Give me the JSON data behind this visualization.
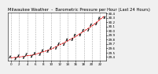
{
  "title": "Milwaukee Weather  -  Barometric Pressure per Hour (Last 24 Hours)",
  "bg_color": "#f0f0f0",
  "plot_bg_color": "#ffffff",
  "grid_color": "#aaaaaa",
  "hours": [
    0,
    1,
    2,
    3,
    4,
    5,
    6,
    7,
    8,
    9,
    10,
    11,
    12,
    13,
    14,
    15,
    16,
    17,
    18,
    19,
    20,
    21,
    22,
    23
  ],
  "pressure": [
    29.38,
    29.39,
    29.4,
    29.41,
    29.43,
    29.44,
    29.46,
    29.49,
    29.52,
    29.55,
    29.58,
    29.63,
    29.68,
    29.72,
    29.77,
    29.82,
    29.87,
    29.93,
    29.99,
    30.05,
    30.11,
    30.18,
    30.26,
    30.33
  ],
  "bar_offsets_x": [
    -0.25,
    0.1,
    -0.2,
    0.15,
    -0.25,
    0.1,
    -0.2,
    0.15,
    -0.25,
    0.1,
    -0.2,
    0.15,
    -0.25,
    0.1,
    -0.2,
    0.15,
    -0.25,
    0.1,
    -0.2,
    0.15,
    -0.25,
    0.1,
    -0.2,
    0.15
  ],
  "bar_offsets_y": [
    0.02,
    -0.03,
    0.025,
    -0.02,
    0.03,
    -0.025,
    0.02,
    -0.03,
    0.025,
    -0.02,
    0.03,
    -0.025,
    0.02,
    -0.03,
    0.025,
    -0.02,
    0.03,
    -0.025,
    0.02,
    -0.03,
    0.025,
    -0.02,
    0.03,
    -0.025
  ],
  "line_color": "#dd0000",
  "marker_color": "#111111",
  "ylim_min": 29.32,
  "ylim_max": 30.42,
  "ytick_labels": [
    "29.4",
    "29.5",
    "29.6",
    "29.7",
    "29.8",
    "29.9",
    "30.0",
    "30.1",
    "30.2",
    "30.3",
    "30.4"
  ],
  "ytick_values": [
    29.4,
    29.5,
    29.6,
    29.7,
    29.8,
    29.9,
    30.0,
    30.1,
    30.2,
    30.3,
    30.4
  ],
  "xtick_positions": [
    0,
    2,
    4,
    6,
    8,
    10,
    12,
    14,
    16,
    18,
    20,
    22
  ],
  "xtick_labels": [
    "0",
    "2",
    "4",
    "6",
    "8",
    "10",
    "12",
    "14",
    "16",
    "18",
    "20",
    "22"
  ],
  "title_fontsize": 3.8,
  "tick_fontsize": 3.0,
  "linewidth": 0.7,
  "grid_linewidth": 0.4
}
